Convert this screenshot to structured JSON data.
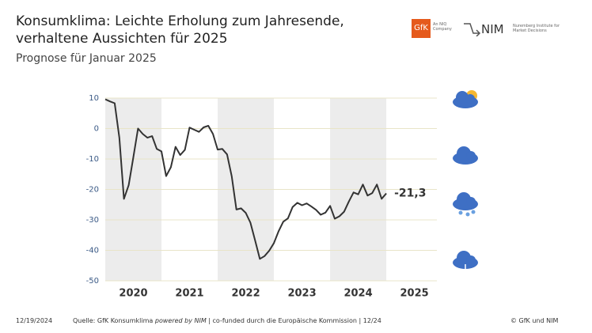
{
  "chart_data": {
    "type": "line",
    "title": "Konsumklima: Leichte Erholung zum Jahresende, verhaltene Aussichten für 2025",
    "subtitle": "Prognose für Januar 2025",
    "logos": {
      "gfk": "GfK",
      "gfk_sub": "An NIQ Company",
      "nim": "NIM",
      "nim_sub": "Nuremberg Institute for Market Decisions"
    },
    "footer": {
      "date": "12/19/2024",
      "source_prefix": "Quelle: GfK Konsumklima",
      "source_italic": "powered by NIM",
      "source_suffix": "| co-funded durch die Europäische Kommission | 12/24",
      "copyright": "© GfK und NIM"
    },
    "xlim": [
      2020,
      2025.9
    ],
    "xticks": [
      {
        "value": 2020.5,
        "label": "2020"
      },
      {
        "value": 2021.5,
        "label": "2021"
      },
      {
        "value": 2022.5,
        "label": "2022"
      },
      {
        "value": 2023.5,
        "label": "2023"
      },
      {
        "value": 2024.5,
        "label": "2024"
      },
      {
        "value": 2025.5,
        "label": "2025"
      }
    ],
    "ylim": [
      -50,
      10
    ],
    "yticks": [
      10,
      0,
      -10,
      -20,
      -30,
      -40,
      -50
    ],
    "grid": true,
    "x": [
      2020,
      2020.083,
      2020.167,
      2020.25,
      2020.333,
      2020.417,
      2020.5,
      2020.583,
      2020.667,
      2020.75,
      2020.833,
      2020.917,
      2021,
      2021.083,
      2021.167,
      2021.25,
      2021.333,
      2021.417,
      2021.5,
      2021.583,
      2021.667,
      2021.75,
      2021.833,
      2021.917,
      2022,
      2022.083,
      2022.167,
      2022.25,
      2022.333,
      2022.417,
      2022.5,
      2022.583,
      2022.667,
      2022.75,
      2022.833,
      2022.917,
      2023,
      2023.083,
      2023.167,
      2023.25,
      2023.333,
      2023.417,
      2023.5,
      2023.583,
      2023.667,
      2023.75,
      2023.833,
      2023.917,
      2024,
      2024.083,
      2024.167,
      2024.25,
      2024.333,
      2024.417,
      2024.5,
      2024.583,
      2024.667,
      2024.75,
      2024.833,
      2024.917,
      2025
    ],
    "series": [
      {
        "name": "Konsumklima",
        "color": "#333333",
        "values": [
          9.6,
          8.9,
          8.3,
          -3,
          -23.1,
          -18.6,
          -9.4,
          0,
          -1.8,
          -3,
          -2.5,
          -6.7,
          -7.5,
          -15.6,
          -12.7,
          -6,
          -8.7,
          -7,
          0.3,
          -0.4,
          -1.1,
          0.4,
          0.9,
          -1.8,
          -6.9,
          -6.7,
          -8.5,
          -15.7,
          -26.6,
          -26.2,
          -27.7,
          -30.9,
          -36.8,
          -42.8,
          -41.9,
          -40.1,
          -37.6,
          -33.8,
          -30.6,
          -29.5,
          -25.8,
          -24.4,
          -25.2,
          -24.6,
          -25.6,
          -26.7,
          -28.3,
          -27.6,
          -25.4,
          -29.6,
          -28.8,
          -27.3,
          -24,
          -21,
          -21.6,
          -18.4,
          -22,
          -21.2,
          -18.4,
          -23.1,
          -21.3
        ],
        "value_labels": [
          null,
          null,
          null,
          null,
          null,
          null,
          null,
          null,
          null,
          null,
          null,
          null,
          null,
          null,
          null,
          null,
          null,
          null,
          null,
          null,
          null,
          null,
          null,
          null,
          null,
          null,
          null,
          null,
          null,
          null,
          null,
          null,
          null,
          null,
          null,
          null,
          null,
          null,
          null,
          null,
          null,
          null,
          null,
          null,
          null,
          null,
          null,
          null,
          null,
          null,
          null,
          null,
          null,
          null,
          null,
          null,
          null,
          null,
          null,
          null,
          "-21,3"
        ]
      }
    ]
  }
}
